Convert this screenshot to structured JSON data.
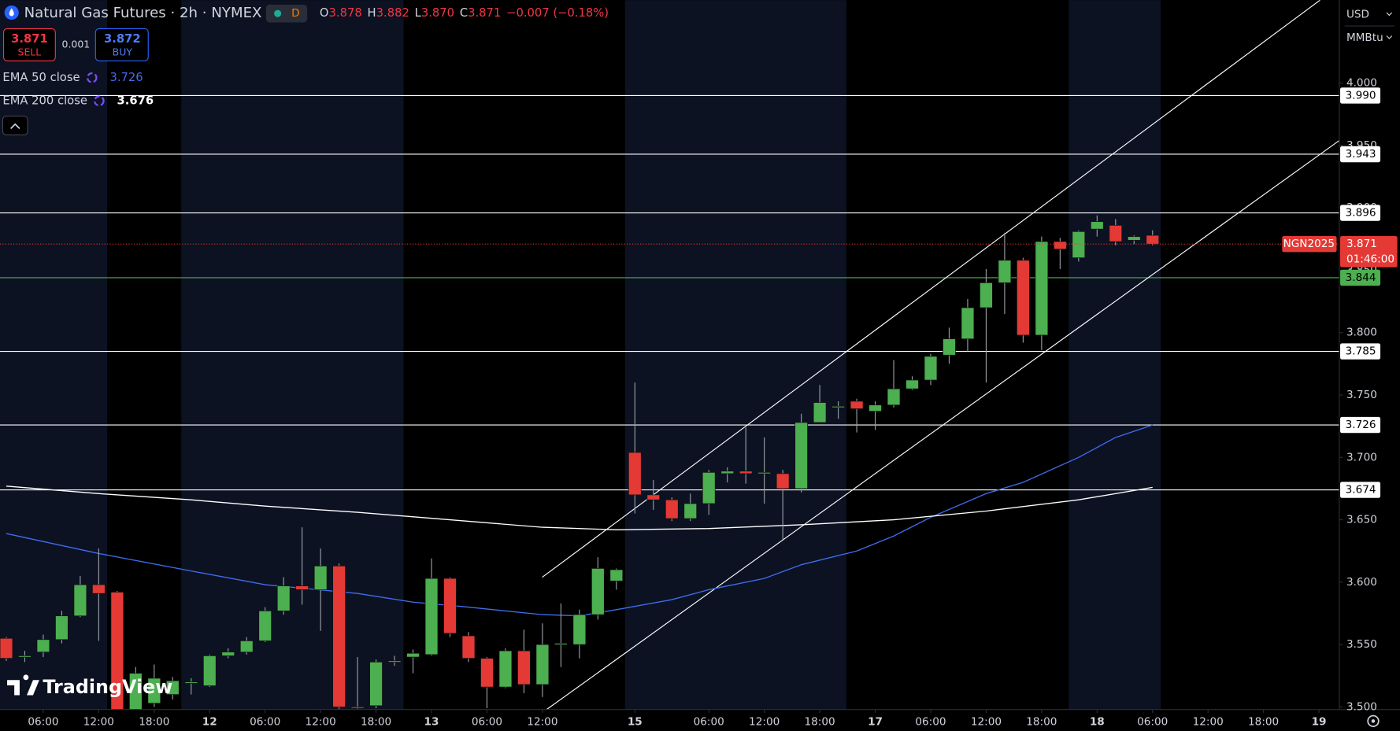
{
  "header": {
    "title": "Natural Gas Futures · 2h · NYMEX",
    "interval_badge": "D",
    "ohlc": [
      {
        "label": "O",
        "value": "3.878"
      },
      {
        "label": "H",
        "value": "3.882"
      },
      {
        "label": "L",
        "value": "3.870"
      },
      {
        "label": "C",
        "value": "3.871"
      }
    ],
    "change": "−0.007 (−0.18%)"
  },
  "trade": {
    "sell": {
      "price": "3.871",
      "label": "SELL"
    },
    "spread": "0.001",
    "buy": {
      "price": "3.872",
      "label": "BUY"
    }
  },
  "legend": [
    {
      "name": "EMA 50 close",
      "value": 3.726,
      "color": "#3f6df0"
    },
    {
      "name": "EMA 200 close",
      "value": 3.676,
      "color": "#ffffff"
    }
  ],
  "axis_menu": {
    "currency": "USD",
    "unit": "MMBtu"
  },
  "logo": "TradingView",
  "chart_data": {
    "type": "candlestick",
    "up_color": "#4caf50",
    "down_color": "#e53935",
    "xlim": [
      -0.34,
      72.1
    ],
    "ylim": [
      3.498,
      4.0665
    ],
    "open": [
      3.555,
      3.54,
      3.544,
      3.554,
      3.573,
      3.598,
      3.592,
      3.49,
      3.503,
      3.51,
      3.519,
      3.517,
      3.541,
      3.544,
      3.553,
      3.577,
      3.597,
      3.594,
      3.613,
      3.5,
      3.501,
      3.536,
      3.54,
      3.542,
      3.603,
      3.557,
      3.539,
      3.516,
      3.545,
      3.518,
      3.55,
      3.55,
      3.574,
      3.601,
      3.704,
      3.67,
      3.666,
      3.651,
      3.663,
      3.687,
      3.689,
      3.688,
      3.687,
      3.675,
      3.728,
      3.741,
      3.745,
      3.737,
      3.742,
      3.755,
      3.762,
      3.782,
      3.795,
      3.82,
      3.84,
      3.858,
      3.798,
      3.873,
      3.86,
      3.883,
      3.886,
      3.874,
      3.878
    ],
    "high": [
      3.556,
      3.545,
      3.558,
      3.577,
      3.605,
      3.627,
      3.593,
      3.532,
      3.534,
      3.524,
      3.523,
      3.542,
      3.547,
      3.556,
      3.58,
      3.604,
      3.644,
      3.627,
      3.615,
      3.54,
      3.538,
      3.541,
      3.546,
      3.619,
      3.604,
      3.56,
      3.54,
      3.547,
      3.562,
      3.567,
      3.583,
      3.578,
      3.62,
      3.611,
      3.76,
      3.682,
      3.668,
      3.671,
      3.69,
      3.692,
      3.724,
      3.716,
      3.69,
      3.735,
      3.758,
      3.745,
      3.747,
      3.745,
      3.778,
      3.765,
      3.783,
      3.804,
      3.827,
      3.851,
      3.88,
      3.86,
      3.877,
      3.876,
      3.882,
      3.894,
      3.891,
      3.878,
      3.882
    ],
    "low": [
      3.537,
      3.536,
      3.54,
      3.551,
      3.572,
      3.553,
      3.47,
      3.48,
      3.5,
      3.506,
      3.51,
      3.516,
      3.539,
      3.542,
      3.552,
      3.574,
      3.582,
      3.561,
      3.497,
      3.49,
      3.499,
      3.533,
      3.527,
      3.541,
      3.556,
      3.536,
      3.499,
      3.515,
      3.511,
      3.508,
      3.532,
      3.539,
      3.57,
      3.594,
      3.655,
      3.658,
      3.649,
      3.649,
      3.654,
      3.68,
      3.679,
      3.663,
      3.634,
      3.672,
      3.728,
      3.731,
      3.72,
      3.722,
      3.74,
      3.754,
      3.758,
      3.775,
      3.785,
      3.76,
      3.815,
      3.792,
      3.786,
      3.851,
      3.857,
      3.877,
      3.87,
      3.871,
      3.87
    ],
    "close": [
      3.539,
      3.541,
      3.554,
      3.573,
      3.598,
      3.591,
      3.49,
      3.527,
      3.523,
      3.521,
      3.52,
      3.541,
      3.544,
      3.553,
      3.577,
      3.597,
      3.594,
      3.613,
      3.5,
      3.499,
      3.536,
      3.537,
      3.543,
      3.603,
      3.559,
      3.539,
      3.516,
      3.545,
      3.518,
      3.55,
      3.551,
      3.574,
      3.611,
      3.61,
      3.67,
      3.666,
      3.651,
      3.663,
      3.688,
      3.689,
      3.687,
      3.688,
      3.675,
      3.728,
      3.744,
      3.741,
      3.739,
      3.742,
      3.755,
      3.762,
      3.781,
      3.795,
      3.82,
      3.84,
      3.858,
      3.798,
      3.873,
      3.867,
      3.881,
      3.889,
      3.873,
      3.877,
      3.871
    ],
    "indicators": [
      {
        "color": "#3f6df0",
        "x": [
          0,
          5,
          10,
          14,
          19,
          22,
          25,
          29,
          31,
          33,
          36,
          38,
          41,
          43,
          46,
          48,
          50,
          53,
          55,
          58,
          60,
          62
        ],
        "values": [
          3.639,
          3.623,
          3.609,
          3.598,
          3.591,
          3.584,
          3.58,
          3.574,
          3.573,
          3.578,
          3.586,
          3.594,
          3.603,
          3.614,
          3.625,
          3.637,
          3.652,
          3.671,
          3.68,
          3.7,
          3.716,
          3.726
        ]
      },
      {
        "color": "#ffffff",
        "x": [
          0,
          5,
          10,
          14,
          19,
          24,
          29,
          33,
          38,
          43,
          48,
          53,
          58,
          62
        ],
        "values": [
          3.677,
          3.671,
          3.666,
          3.661,
          3.656,
          3.65,
          3.644,
          3.642,
          3.643,
          3.646,
          3.65,
          3.657,
          3.666,
          3.676
        ]
      }
    ],
    "trendlines": [
      {
        "color": "#ffffff",
        "x": [
          28.99,
          71.06
        ],
        "values": [
          3.604,
          4.0665
        ]
      },
      {
        "color": "#ffffff",
        "x": [
          29.23,
          72.1
        ],
        "values": [
          3.498,
          3.954
        ]
      }
    ],
    "levels": [
      {
        "value": 3.99,
        "label": "3.990",
        "color": "#ffffff"
      },
      {
        "value": 3.943,
        "label": "3.943",
        "color": "#ffffff"
      },
      {
        "value": 3.896,
        "label": "3.896",
        "color": "#ffffff"
      },
      {
        "value": 3.844,
        "label": "3.844",
        "color": "#4caf50"
      },
      {
        "value": 3.785,
        "label": "3.785",
        "color": "#ffffff"
      },
      {
        "value": 3.726,
        "label": "3.726",
        "color": "#ffffff"
      },
      {
        "value": 3.674,
        "label": "3.674",
        "color": "#ffffff"
      }
    ],
    "last": {
      "value": 3.871,
      "label": "3.871",
      "symbol": "NGN2025",
      "countdown": "01:46:00",
      "color": "#e53935"
    },
    "yticks": [
      {
        "value": 3.5,
        "label": "3.500"
      },
      {
        "value": 3.55,
        "label": "3.550"
      },
      {
        "value": 3.6,
        "label": "3.600"
      },
      {
        "value": 3.65,
        "label": "3.650"
      },
      {
        "value": 3.7,
        "label": "3.700"
      },
      {
        "value": 3.75,
        "label": "3.750"
      },
      {
        "value": 3.8,
        "label": "3.800"
      },
      {
        "value": 3.85,
        "label": "3.850"
      },
      {
        "value": 3.9,
        "label": "3.900"
      },
      {
        "value": 3.95,
        "label": "3.950"
      },
      {
        "value": 4.0,
        "label": "4.000"
      }
    ],
    "xticks": [
      {
        "value": 2,
        "label": "06:00"
      },
      {
        "value": 5,
        "label": "12:00"
      },
      {
        "value": 8,
        "label": "18:00"
      },
      {
        "value": 11,
        "label": "12"
      },
      {
        "value": 14,
        "label": "06:00"
      },
      {
        "value": 17,
        "label": "12:00"
      },
      {
        "value": 20,
        "label": "18:00"
      },
      {
        "value": 23,
        "label": "13"
      },
      {
        "value": 26,
        "label": "06:00"
      },
      {
        "value": 29,
        "label": "12:00"
      },
      {
        "value": 34,
        "label": "15"
      },
      {
        "value": 38,
        "label": "06:00"
      },
      {
        "value": 41,
        "label": "12:00"
      },
      {
        "value": 44,
        "label": "18:00"
      },
      {
        "value": 47,
        "label": "17"
      },
      {
        "value": 50,
        "label": "06:00"
      },
      {
        "value": 53,
        "label": "12:00"
      },
      {
        "value": 56,
        "label": "18:00"
      },
      {
        "value": 59,
        "label": "18"
      },
      {
        "value": 62,
        "label": "06:00"
      },
      {
        "value": 65,
        "label": "12:00"
      },
      {
        "value": 68,
        "label": "18:00"
      },
      {
        "value": 71,
        "label": "19"
      }
    ]
  }
}
